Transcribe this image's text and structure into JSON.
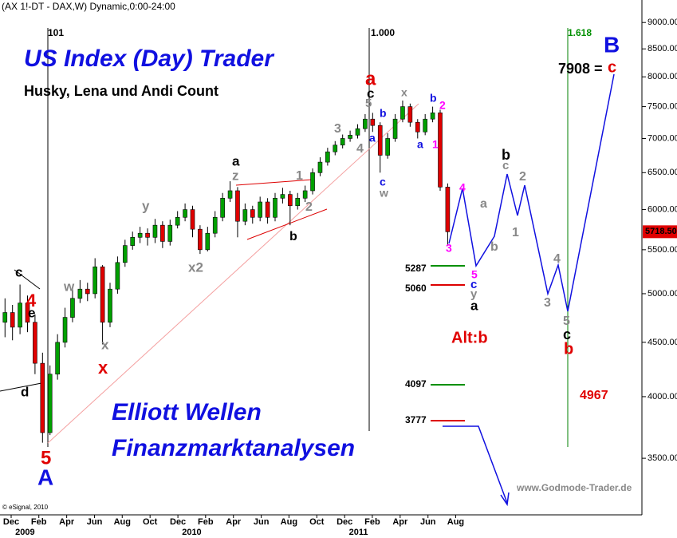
{
  "chart_data": {
    "type": "candlestick",
    "header": "(AX 1!-DT - DAX,W) Dynamic,0:00-24:00",
    "title": "US Index (Day) Trader",
    "subtitle": "Husky, Lena und Andi Count",
    "log_scale": true,
    "up_color": "#00a000",
    "down_color": "#e00000",
    "x": [
      2008.88,
      2008.925,
      2008.97,
      2009.015,
      2009.06,
      2009.105,
      2009.15,
      2009.195,
      2009.24,
      2009.285,
      2009.33,
      2009.375,
      2009.42,
      2009.465,
      2009.51,
      2009.555,
      2009.6,
      2009.645,
      2009.69,
      2009.735,
      2009.78,
      2009.825,
      2009.87,
      2009.915,
      2009.96,
      2010.005,
      2010.05,
      2010.095,
      2010.14,
      2010.185,
      2010.23,
      2010.275,
      2010.32,
      2010.365,
      2010.41,
      2010.455,
      2010.5,
      2010.545,
      2010.59,
      2010.635,
      2010.68,
      2010.725,
      2010.77,
      2010.815,
      2010.86,
      2010.905,
      2010.95,
      2010.995,
      2011.04,
      2011.085,
      2011.13,
      2011.175,
      2011.22,
      2011.265,
      2011.31,
      2011.355,
      2011.4,
      2011.445,
      2011.49,
      2011.535
    ],
    "open": [
      4700,
      4800,
      4650,
      4900,
      4700,
      4300,
      3700,
      4200,
      4500,
      4750,
      4950,
      5050,
      5000,
      5300,
      4700,
      5050,
      5350,
      5550,
      5650,
      5700,
      5650,
      5800,
      5600,
      5800,
      5900,
      6000,
      5750,
      5500,
      5700,
      5900,
      6150,
      6250,
      5850,
      6000,
      5900,
      6100,
      5900,
      6150,
      6200,
      6050,
      6150,
      6250,
      6500,
      6650,
      6800,
      6900,
      7000,
      7050,
      7150,
      7300,
      7200,
      6750,
      7000,
      7300,
      7500,
      7250,
      7100,
      7300,
      7400,
      6300
    ],
    "high": [
      4950,
      4880,
      5100,
      4980,
      4780,
      4400,
      4280,
      4580,
      4850,
      5050,
      5150,
      5120,
      5400,
      5320,
      5120,
      5420,
      5620,
      5720,
      5780,
      5760,
      5880,
      5850,
      5870,
      5980,
      6080,
      6050,
      5800,
      5780,
      5980,
      6220,
      6380,
      6300,
      6080,
      6050,
      6170,
      6150,
      6220,
      6290,
      6250,
      6220,
      6320,
      6560,
      6720,
      6860,
      6960,
      7060,
      7120,
      7220,
      7380,
      7400,
      7250,
      7080,
      7380,
      7600,
      7550,
      7300,
      7380,
      7500,
      7450,
      6350
    ],
    "low": [
      4550,
      4520,
      4580,
      4600,
      4200,
      3620,
      3680,
      4150,
      4450,
      4700,
      4900,
      4920,
      4950,
      4480,
      4650,
      5000,
      5300,
      5500,
      5580,
      5550,
      5580,
      5520,
      5550,
      5760,
      5850,
      5650,
      5450,
      5480,
      5650,
      5850,
      6100,
      5650,
      5800,
      5820,
      5850,
      5820,
      5850,
      6080,
      5800,
      6000,
      6100,
      6200,
      6450,
      6600,
      6750,
      6850,
      6950,
      7000,
      7100,
      7100,
      6500,
      6700,
      6950,
      7250,
      7180,
      7000,
      7050,
      7250,
      6250,
      5550
    ],
    "close": [
      4800,
      4650,
      4900,
      4700,
      4300,
      3700,
      4200,
      4500,
      4750,
      4950,
      5050,
      5000,
      5300,
      4700,
      5050,
      5350,
      5550,
      5650,
      5700,
      5650,
      5800,
      5600,
      5800,
      5900,
      6000,
      5750,
      5500,
      5700,
      5900,
      6150,
      6250,
      5850,
      6000,
      5900,
      6100,
      5900,
      6150,
      6200,
      6050,
      6150,
      6250,
      6500,
      6650,
      6800,
      6900,
      7000,
      7050,
      7150,
      7300,
      7200,
      6750,
      7000,
      7300,
      7500,
      7250,
      7100,
      7300,
      7400,
      6300,
      5718.5
    ],
    "last_price": {
      "value": 5718.5,
      "label": "5718.50"
    },
    "xlim": [
      2008.85,
      2012.7
    ],
    "xticks": [
      {
        "value": 2008.917,
        "label": "Dec"
      },
      {
        "value": 2009.083,
        "label": "Feb"
      },
      {
        "value": 2009.25,
        "label": "Apr"
      },
      {
        "value": 2009.417,
        "label": "Jun"
      },
      {
        "value": 2009.583,
        "label": "Aug"
      },
      {
        "value": 2009.75,
        "label": "Oct"
      },
      {
        "value": 2009.917,
        "label": "Dec"
      },
      {
        "value": 2010.083,
        "label": "Feb"
      },
      {
        "value": 2010.25,
        "label": "Apr"
      },
      {
        "value": 2010.417,
        "label": "Jun"
      },
      {
        "value": 2010.583,
        "label": "Aug"
      },
      {
        "value": 2010.75,
        "label": "Oct"
      },
      {
        "value": 2010.917,
        "label": "Dec"
      },
      {
        "value": 2011.083,
        "label": "Feb"
      },
      {
        "value": 2011.25,
        "label": "Apr"
      },
      {
        "value": 2011.417,
        "label": "Jun"
      },
      {
        "value": 2011.583,
        "label": "Aug"
      }
    ],
    "year_ticks": [
      2009,
      2010,
      2011
    ],
    "ylim": [
      3096,
      9450
    ],
    "yticks": [
      {
        "value": 3500,
        "label": "3500.00"
      },
      {
        "value": 4000,
        "label": "4000.00"
      },
      {
        "value": 4500,
        "label": "4500.00"
      },
      {
        "value": 5000,
        "label": "5000.00"
      },
      {
        "value": 5500,
        "label": "5500.00"
      },
      {
        "value": 6000,
        "label": "6000.00"
      },
      {
        "value": 6500,
        "label": "6500.00"
      },
      {
        "value": 7000,
        "label": "7000.00"
      },
      {
        "value": 7500,
        "label": "7500.00"
      },
      {
        "value": 8000,
        "label": "8000.00"
      },
      {
        "value": 8500,
        "label": "8500.00"
      },
      {
        "value": 9000,
        "label": "9000.00"
      }
    ],
    "annotations": [
      "101",
      "1.000",
      "1.618",
      "Elliott Wellen",
      "Finanzmarktanalysen",
      "www.Godmode-Trader.de",
      "© eSignal, 2010",
      "c",
      "4",
      "e",
      "d",
      "5",
      "A",
      "w",
      "x",
      "x",
      "y",
      "x2",
      "a",
      "z",
      "1",
      "2",
      "b",
      "3",
      "4",
      "a",
      "c",
      "5",
      "b",
      "a",
      "c",
      "w",
      "x",
      "b",
      "2",
      "a",
      "1",
      "4",
      "3",
      "5",
      "c",
      "y",
      "a",
      "a",
      "b",
      "b",
      "c",
      "2",
      "1",
      "4",
      "3",
      "5",
      "c",
      "b",
      "B",
      "7908 =",
      "c",
      "Alt:b",
      "4967",
      "5287",
      "5060",
      "4097",
      "3777"
    ]
  }
}
